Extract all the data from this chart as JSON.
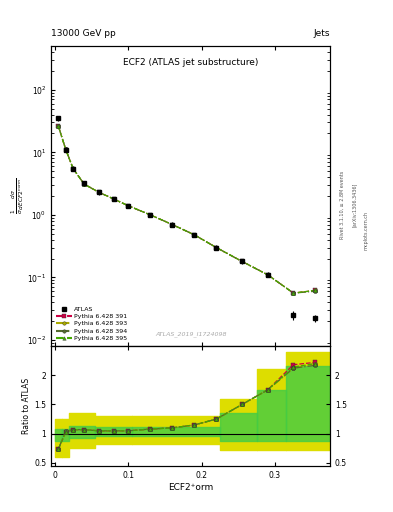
{
  "title_main": "ECF2 (ATLAS jet substructure)",
  "header_left": "13000 GeV pp",
  "header_right": "Jets",
  "watermark": "ATLAS_2019_I1724098",
  "right_label1": "Rivet 3.1.10, ≥ 2.8M events",
  "right_label2": "[arXiv:1306.3436]",
  "right_label3": "mcplots.cern.ch",
  "ylabel_ratio": "Ratio to ATLAS",
  "xlabel": "ECF2⁺orm",
  "ylim_main": [
    0.008,
    500
  ],
  "ylim_ratio": [
    0.45,
    2.5
  ],
  "xlim": [
    -0.005,
    0.375
  ],
  "atlas_x": [
    0.005,
    0.015,
    0.025,
    0.04,
    0.06,
    0.08,
    0.1,
    0.13,
    0.16,
    0.19,
    0.22,
    0.255,
    0.29,
    0.325,
    0.355
  ],
  "atlas_y": [
    35,
    11,
    5.5,
    3.2,
    2.3,
    1.8,
    1.4,
    1.0,
    0.7,
    0.48,
    0.3,
    0.18,
    0.11,
    0.025,
    0.022
  ],
  "atlas_yerr": [
    3,
    1,
    0.5,
    0.3,
    0.2,
    0.15,
    0.1,
    0.08,
    0.06,
    0.04,
    0.025,
    0.015,
    0.01,
    0.004,
    0.003
  ],
  "py391_x": [
    0.005,
    0.015,
    0.025,
    0.04,
    0.06,
    0.08,
    0.1,
    0.13,
    0.16,
    0.19,
    0.22,
    0.255,
    0.29,
    0.325,
    0.355
  ],
  "py391_y": [
    26,
    11,
    5.5,
    3.1,
    2.3,
    1.8,
    1.4,
    1.0,
    0.7,
    0.48,
    0.3,
    0.18,
    0.11,
    0.056,
    0.062
  ],
  "py393_x": [
    0.005,
    0.015,
    0.025,
    0.04,
    0.06,
    0.08,
    0.1,
    0.13,
    0.16,
    0.19,
    0.22,
    0.255,
    0.29,
    0.325,
    0.355
  ],
  "py393_y": [
    26,
    11,
    5.5,
    3.1,
    2.3,
    1.8,
    1.4,
    1.0,
    0.7,
    0.48,
    0.3,
    0.18,
    0.11,
    0.056,
    0.062
  ],
  "py394_x": [
    0.005,
    0.015,
    0.025,
    0.04,
    0.06,
    0.08,
    0.1,
    0.13,
    0.16,
    0.19,
    0.22,
    0.255,
    0.29,
    0.325,
    0.355
  ],
  "py394_y": [
    26,
    11.2,
    5.5,
    3.1,
    2.3,
    1.8,
    1.4,
    1.0,
    0.7,
    0.48,
    0.3,
    0.18,
    0.11,
    0.056,
    0.06
  ],
  "py395_x": [
    0.005,
    0.015,
    0.025,
    0.04,
    0.06,
    0.08,
    0.1,
    0.13,
    0.16,
    0.19,
    0.22,
    0.255,
    0.29,
    0.325,
    0.355
  ],
  "py395_y": [
    26,
    11,
    5.5,
    3.1,
    2.3,
    1.8,
    1.4,
    1.0,
    0.7,
    0.48,
    0.3,
    0.18,
    0.11,
    0.056,
    0.062
  ],
  "ratio_x": [
    0.005,
    0.015,
    0.025,
    0.04,
    0.06,
    0.08,
    0.1,
    0.13,
    0.16,
    0.19,
    0.22,
    0.255,
    0.29,
    0.325,
    0.355
  ],
  "ratio_391": [
    0.74,
    1.03,
    1.07,
    1.07,
    1.05,
    1.05,
    1.05,
    1.08,
    1.1,
    1.15,
    1.25,
    1.5,
    1.75,
    2.18,
    2.22
  ],
  "ratio_393": [
    0.74,
    1.03,
    1.07,
    1.07,
    1.05,
    1.05,
    1.05,
    1.08,
    1.1,
    1.15,
    1.25,
    1.5,
    1.75,
    2.12,
    2.2
  ],
  "ratio_394": [
    0.74,
    1.05,
    1.07,
    1.07,
    1.05,
    1.05,
    1.05,
    1.08,
    1.1,
    1.15,
    1.25,
    1.5,
    1.75,
    2.12,
    2.17
  ],
  "ratio_395": [
    0.74,
    1.03,
    1.07,
    1.07,
    1.05,
    1.05,
    1.05,
    1.08,
    1.1,
    1.15,
    1.25,
    1.5,
    1.75,
    2.14,
    2.2
  ],
  "band_edges": [
    0.0,
    0.01,
    0.02,
    0.055,
    0.105,
    0.225,
    0.275,
    0.315,
    0.375
  ],
  "green_lo": [
    0.88,
    0.88,
    0.93,
    0.96,
    0.96,
    0.88,
    0.88,
    0.88,
    0.88
  ],
  "green_hi": [
    1.08,
    1.08,
    1.14,
    1.12,
    1.12,
    1.35,
    1.75,
    2.15,
    2.15
  ],
  "yellow_lo": [
    0.6,
    0.6,
    0.76,
    0.82,
    0.82,
    0.72,
    0.72,
    0.72,
    0.72
  ],
  "yellow_hi": [
    1.25,
    1.25,
    1.35,
    1.3,
    1.3,
    1.6,
    2.1,
    2.4,
    2.4
  ],
  "color_391": "#cc0044",
  "color_393": "#aaaa00",
  "color_394": "#556b2f",
  "color_395": "#44aa00",
  "color_atlas": "#000000",
  "color_green": "#44cc44",
  "color_yellow": "#dddd00"
}
